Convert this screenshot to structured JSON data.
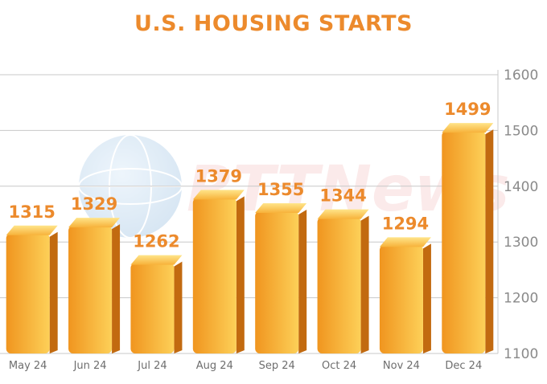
{
  "title": "U.S. HOUSING STARTS",
  "watermark_text": "RTTNews",
  "colors": {
    "title": "#ec8a2c",
    "value_label": "#ec8a2c",
    "bar_left": "#f0951f",
    "bar_right": "#fdd058",
    "bar_side": "#c26a10",
    "bar_top": "#fbc646",
    "grid": "#c8c8c8",
    "axis_text": "#8a8a8a",
    "category_text": "#6e6e6e"
  },
  "chart_data": {
    "type": "bar",
    "title": "U.S. HOUSING STARTS",
    "xlabel": "",
    "ylabel": "",
    "categories": [
      "May 24",
      "Jun 24",
      "Jul 24",
      "Aug 24",
      "Sep 24",
      "Oct 24",
      "Nov 24",
      "Dec 24"
    ],
    "values": [
      1315,
      1329,
      1262,
      1379,
      1355,
      1344,
      1294,
      1499
    ],
    "ylim": [
      1100,
      1600
    ],
    "yticks": [
      1100,
      1200,
      1300,
      1400,
      1500,
      1600
    ],
    "grid": true,
    "axis_position": "right",
    "legend": "none"
  }
}
